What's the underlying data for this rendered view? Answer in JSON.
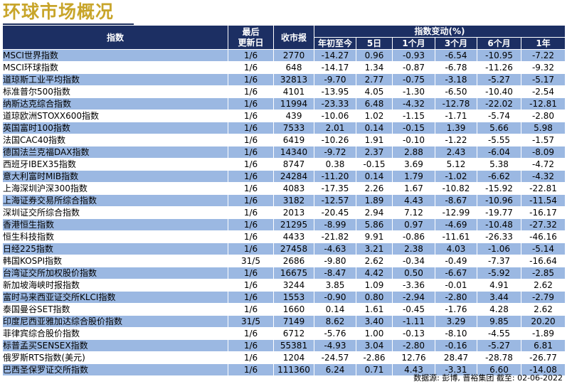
{
  "title": "环球市场概况",
  "header": {
    "index": "指数",
    "last_update": [
      "最后",
      "更新日"
    ],
    "close": "收市报",
    "change_group": "指数变动(%)",
    "periods": [
      "年初至今",
      "5日",
      "1个月",
      "3个月",
      "6个月",
      "1年"
    ]
  },
  "rows": [
    {
      "name": "MSCI世界指数",
      "date": "1/6",
      "close": "2770",
      "vals": [
        "-14.27",
        "0.96",
        "-0.93",
        "-6.54",
        "-10.95",
        "-7.22"
      ]
    },
    {
      "name": "MSCI环球指数",
      "date": "1/6",
      "close": "648",
      "vals": [
        "-14.17",
        "1.34",
        "-0.87",
        "-6.78",
        "-11.26",
        "-9.32"
      ]
    },
    {
      "name": "道琼斯工业平均指数",
      "date": "1/6",
      "close": "32813",
      "vals": [
        "-9.70",
        "2.77",
        "-0.75",
        "-3.18",
        "-5.27",
        "-5.17"
      ]
    },
    {
      "name": "标准普尔500指数",
      "date": "1/6",
      "close": "4101",
      "vals": [
        "-13.95",
        "4.05",
        "-1.30",
        "-6.50",
        "-10.40",
        "-2.54"
      ]
    },
    {
      "name": "纳斯达克综合指数",
      "date": "1/6",
      "close": "11994",
      "vals": [
        "-23.33",
        "6.48",
        "-4.32",
        "-12.78",
        "-22.02",
        "-12.81"
      ]
    },
    {
      "name": "道琼欧洲STOXX600指数",
      "date": "1/6",
      "close": "439",
      "vals": [
        "-10.06",
        "1.02",
        "-1.15",
        "-1.71",
        "-5.74",
        "-2.80"
      ]
    },
    {
      "name": "英国富时100指数",
      "date": "1/6",
      "close": "7533",
      "vals": [
        "2.01",
        "0.14",
        "-0.15",
        "1.39",
        "5.66",
        "5.98"
      ]
    },
    {
      "name": "法国CAC40指数",
      "date": "1/6",
      "close": "6419",
      "vals": [
        "-10.26",
        "1.91",
        "-0.10",
        "-1.22",
        "-5.55",
        "-1.57"
      ]
    },
    {
      "name": "德国法兰克福DAX指数",
      "date": "1/6",
      "close": "14340",
      "vals": [
        "-9.72",
        "2.37",
        "2.88",
        "2.43",
        "-6.04",
        "-8.09"
      ]
    },
    {
      "name": "西班牙IBEX35指数",
      "date": "1/6",
      "close": "8747",
      "vals": [
        "0.38",
        "-0.15",
        "3.69",
        "5.12",
        "5.38",
        "-4.72"
      ]
    },
    {
      "name": "意大利富时MIB指数",
      "date": "1/6",
      "close": "24284",
      "vals": [
        "-11.20",
        "0.14",
        "1.79",
        "-1.02",
        "-6.62",
        "-4.32"
      ]
    },
    {
      "name": "上海深圳沪深300指数",
      "date": "1/6",
      "close": "4083",
      "vals": [
        "-17.35",
        "2.26",
        "1.67",
        "-10.82",
        "-15.92",
        "-22.81"
      ]
    },
    {
      "name": "上海证券交易所综合指数",
      "date": "1/6",
      "close": "3182",
      "vals": [
        "-12.57",
        "1.89",
        "4.43",
        "-8.67",
        "-10.96",
        "-11.54"
      ]
    },
    {
      "name": "深圳证交所综合指数",
      "date": "1/6",
      "close": "2013",
      "vals": [
        "-20.45",
        "2.94",
        "7.12",
        "-12.99",
        "-19.77",
        "-16.17"
      ]
    },
    {
      "name": "香港恒生指数",
      "date": "1/6",
      "close": "21295",
      "vals": [
        "-8.99",
        "5.86",
        "0.97",
        "-4.69",
        "-10.48",
        "-27.32"
      ]
    },
    {
      "name": "恒生科技指数",
      "date": "1/6",
      "close": "4433",
      "vals": [
        "-21.82",
        "9.91",
        "-0.86",
        "-11.61",
        "-26.33",
        "-46.16"
      ]
    },
    {
      "name": "日经225指数",
      "date": "1/6",
      "close": "27458",
      "vals": [
        "-4.63",
        "3.21",
        "2.38",
        "4.03",
        "-1.06",
        "-5.14"
      ]
    },
    {
      "name": "韩国KOSPI指数",
      "date": "31/5",
      "close": "2686",
      "vals": [
        "-9.80",
        "2.62",
        "-0.34",
        "-0.49",
        "-7.37",
        "-16.64"
      ]
    },
    {
      "name": "台湾证交所加权股价指数",
      "date": "1/6",
      "close": "16675",
      "vals": [
        "-8.47",
        "4.42",
        "0.50",
        "-6.67",
        "-5.92",
        "-2.85"
      ]
    },
    {
      "name": "新加坡海峡时报指数",
      "date": "1/6",
      "close": "3244",
      "vals": [
        "3.85",
        "1.09",
        "-3.36",
        "-0.01",
        "4.91",
        "2.62"
      ]
    },
    {
      "name": "富时马来西亚证交所KLCI指数",
      "date": "1/6",
      "close": "1553",
      "vals": [
        "-0.90",
        "0.80",
        "-2.94",
        "-2.80",
        "3.44",
        "-2.79"
      ]
    },
    {
      "name": "泰国曼谷SET指数",
      "date": "1/6",
      "close": "1660",
      "vals": [
        "0.14",
        "1.61",
        "-0.45",
        "-1.76",
        "4.28",
        "2.62"
      ]
    },
    {
      "name": "印度尼西亚雅加达综合股价指数",
      "date": "31/5",
      "close": "7149",
      "vals": [
        "8.62",
        "3.40",
        "-1.11",
        "3.29",
        "9.85",
        "20.20"
      ]
    },
    {
      "name": "菲律宾综合股价指数",
      "date": "1/6",
      "close": "6712",
      "vals": [
        "-5.76",
        "1.00",
        "-0.13",
        "-8.10",
        "-4.55",
        "-1.89"
      ]
    },
    {
      "name": "标普孟买SENSEX指数",
      "date": "1/6",
      "close": "55381",
      "vals": [
        "-4.93",
        "3.04",
        "-2.80",
        "-0.16",
        "-5.27",
        "6.81"
      ]
    },
    {
      "name": "俄罗斯RTS指数(美元)",
      "date": "1/6",
      "close": "1204",
      "vals": [
        "-24.57",
        "-2.86",
        "12.76",
        "28.47",
        "-28.78",
        "-26.77"
      ]
    },
    {
      "name": "巴西圣保罗证交所指数",
      "date": "1/6",
      "close": "111360",
      "vals": [
        "6.24",
        "0.71",
        "4.43",
        "-3.31",
        "6.60",
        "-14.08"
      ]
    }
  ],
  "source": "数据源: 彭博, 晋裕集团 截至: 02-06-2022",
  "colors": {
    "header_bg": "#1c2f63",
    "row_alt": "#9bb8e2",
    "title": "#c8a52a"
  }
}
